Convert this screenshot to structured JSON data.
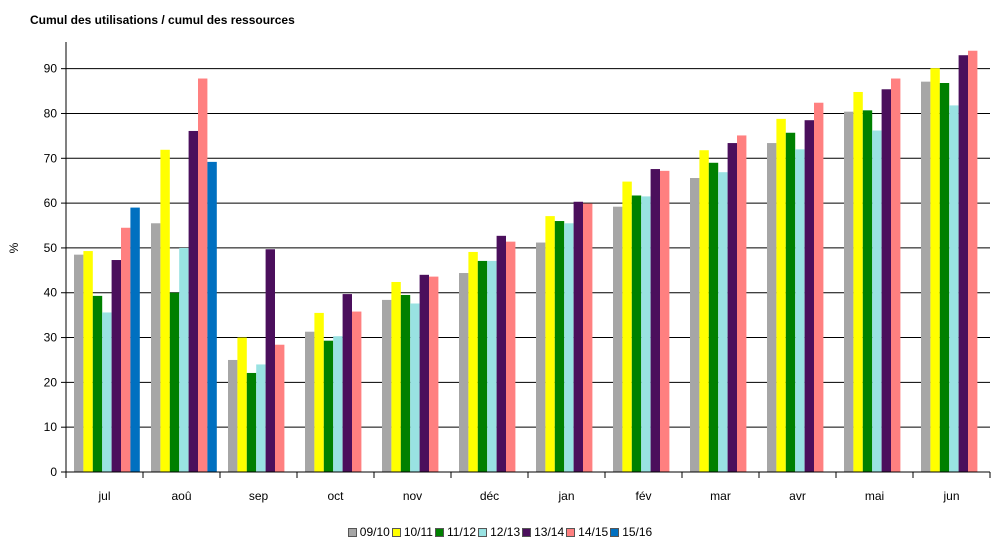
{
  "chart_data": {
    "type": "bar",
    "title": "Cumul des utilisations / cumul des ressources",
    "ylabel": "%",
    "xlabel": "",
    "ylim": [
      0,
      90
    ],
    "yticks": [
      0,
      10,
      20,
      30,
      40,
      50,
      60,
      70,
      80,
      90
    ],
    "grid": true,
    "legend_position": "bottom",
    "categories": [
      "jul",
      "aoû",
      "sep",
      "oct",
      "nov",
      "déc",
      "jan",
      "fév",
      "mar",
      "avr",
      "mai",
      "jun"
    ],
    "series": [
      {
        "name": "09/10",
        "color": "#a6a6a6",
        "values": [
          48.5,
          55.5,
          25,
          31.3,
          38.4,
          44.4,
          51.2,
          59.2,
          65.6,
          73.4,
          80.4,
          87.1
        ]
      },
      {
        "name": "10/11",
        "color": "#ffff00",
        "values": [
          49.3,
          71.9,
          30,
          35.5,
          42.4,
          49.1,
          57.1,
          64.8,
          71.8,
          78.8,
          84.8,
          90.1
        ]
      },
      {
        "name": "11/12",
        "color": "#008000",
        "values": [
          39.3,
          40,
          22.1,
          29.3,
          39.5,
          47.1,
          56,
          61.7,
          69,
          75.7,
          80.7,
          86.8
        ]
      },
      {
        "name": "12/13",
        "color": "#99e2e2",
        "values": [
          35.6,
          50,
          24,
          30.3,
          37.6,
          47.1,
          55.5,
          61.5,
          66.9,
          72,
          76.2,
          81.8
        ]
      },
      {
        "name": "13/14",
        "color": "#4b0f5c",
        "values": [
          47.3,
          76.1,
          49.7,
          39.7,
          44,
          52.7,
          60.3,
          67.6,
          73.4,
          78.5,
          85.4,
          93
        ]
      },
      {
        "name": "14/15",
        "color": "#ff8080",
        "values": [
          54.5,
          87.8,
          28.4,
          35.8,
          43.6,
          51.4,
          59.9,
          67.2,
          75.1,
          82.4,
          87.8,
          94
        ]
      },
      {
        "name": "15/16",
        "color": "#0070c0",
        "values": [
          59,
          69.2,
          null,
          null,
          null,
          null,
          null,
          null,
          null,
          null,
          null,
          null
        ]
      }
    ]
  }
}
